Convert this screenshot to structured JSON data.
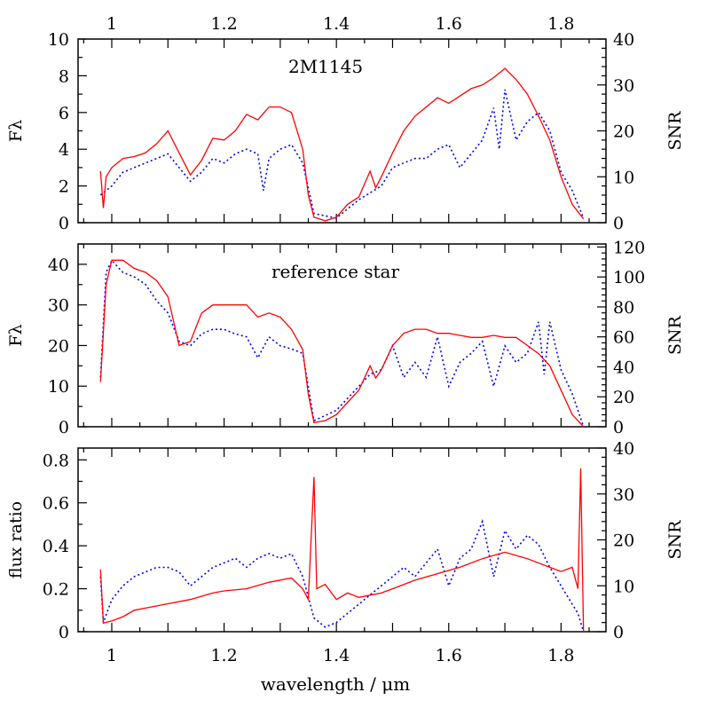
{
  "chart_data": {
    "type": "line",
    "xlabel": "wavelength / μm",
    "xlim": [
      0.94,
      1.88
    ],
    "xticks": [
      1,
      1.2,
      1.4,
      1.6,
      1.8
    ],
    "xtick_labels": [
      "1",
      "1.2",
      "1.4",
      "1.6",
      "1.8"
    ],
    "colors": {
      "flux": "#ff0000",
      "snr": "#0000ff"
    },
    "grid": false,
    "panels": [
      {
        "title": "2M1145",
        "ylabel": "Fλ",
        "ylim": [
          0,
          10
        ],
        "yticks": [
          0,
          2,
          4,
          6,
          8,
          10
        ],
        "ylabel_right": "SNR",
        "ylim_right": [
          0,
          40
        ],
        "yticks_right": [
          0,
          10,
          20,
          30,
          40
        ],
        "flux": {
          "x": [
            0.98,
            0.985,
            0.99,
            1.0,
            1.02,
            1.04,
            1.06,
            1.08,
            1.1,
            1.12,
            1.14,
            1.16,
            1.18,
            1.2,
            1.22,
            1.24,
            1.26,
            1.28,
            1.3,
            1.32,
            1.34,
            1.35,
            1.36,
            1.38,
            1.4,
            1.42,
            1.44,
            1.46,
            1.47,
            1.48,
            1.5,
            1.52,
            1.54,
            1.56,
            1.58,
            1.6,
            1.62,
            1.64,
            1.66,
            1.68,
            1.7,
            1.72,
            1.74,
            1.76,
            1.78,
            1.8,
            1.82,
            1.84
          ],
          "y": [
            2.8,
            0.8,
            2.5,
            3.0,
            3.5,
            3.6,
            3.8,
            4.3,
            5.0,
            3.8,
            2.6,
            3.4,
            4.6,
            4.5,
            5.0,
            5.9,
            5.6,
            6.3,
            6.3,
            6.0,
            4.0,
            1.5,
            0.3,
            0.1,
            0.3,
            1.0,
            1.4,
            2.8,
            1.9,
            2.5,
            3.8,
            5.0,
            5.8,
            6.3,
            6.8,
            6.5,
            6.9,
            7.3,
            7.5,
            7.9,
            8.4,
            7.8,
            7.0,
            5.8,
            4.5,
            2.5,
            1.0,
            0.2
          ]
        },
        "snr": {
          "x": [
            0.98,
            1.0,
            1.02,
            1.04,
            1.06,
            1.08,
            1.1,
            1.12,
            1.14,
            1.16,
            1.18,
            1.2,
            1.22,
            1.24,
            1.26,
            1.27,
            1.28,
            1.3,
            1.32,
            1.34,
            1.36,
            1.4,
            1.44,
            1.48,
            1.5,
            1.52,
            1.54,
            1.56,
            1.58,
            1.6,
            1.62,
            1.64,
            1.66,
            1.68,
            1.69,
            1.7,
            1.72,
            1.74,
            1.76,
            1.78,
            1.8,
            1.82,
            1.84
          ],
          "y": [
            6,
            8,
            11,
            12,
            13,
            14,
            15,
            12,
            9,
            11,
            14,
            13,
            15,
            16,
            15,
            7,
            14,
            16,
            17,
            13,
            2,
            1,
            5,
            8,
            12,
            13,
            14,
            14,
            16,
            17,
            12,
            15,
            18,
            25,
            16,
            29,
            18,
            22,
            24,
            20,
            11,
            7,
            1
          ]
        }
      },
      {
        "title": "reference star",
        "ylabel": "Fλ",
        "ylim": [
          0,
          45
        ],
        "yticks": [
          0,
          10,
          20,
          30,
          40
        ],
        "ylabel_right": "SNR",
        "ylim_right": [
          0,
          122
        ],
        "yticks_right": [
          0,
          20,
          40,
          60,
          80,
          100,
          120
        ],
        "flux": {
          "x": [
            0.98,
            0.99,
            1.0,
            1.02,
            1.04,
            1.06,
            1.08,
            1.1,
            1.12,
            1.14,
            1.16,
            1.18,
            1.2,
            1.22,
            1.24,
            1.26,
            1.28,
            1.3,
            1.32,
            1.34,
            1.35,
            1.36,
            1.38,
            1.4,
            1.42,
            1.44,
            1.46,
            1.47,
            1.48,
            1.5,
            1.52,
            1.54,
            1.56,
            1.58,
            1.6,
            1.62,
            1.64,
            1.66,
            1.68,
            1.7,
            1.72,
            1.74,
            1.76,
            1.78,
            1.8,
            1.82,
            1.84
          ],
          "y": [
            11,
            35,
            41,
            41,
            39,
            38,
            36,
            32,
            20,
            21,
            28,
            30,
            30,
            30,
            30,
            27,
            28,
            27,
            24,
            19,
            8,
            1,
            1.5,
            3,
            6,
            9,
            15,
            12,
            14,
            20,
            23,
            24,
            24,
            23,
            23,
            22.5,
            22,
            22,
            22.5,
            22,
            22,
            20,
            18,
            15,
            9,
            3,
            0
          ]
        },
        "snr": {
          "x": [
            0.98,
            0.99,
            1.0,
            1.02,
            1.04,
            1.06,
            1.08,
            1.1,
            1.12,
            1.14,
            1.16,
            1.18,
            1.2,
            1.22,
            1.24,
            1.26,
            1.28,
            1.3,
            1.32,
            1.34,
            1.36,
            1.4,
            1.44,
            1.46,
            1.48,
            1.5,
            1.52,
            1.54,
            1.56,
            1.58,
            1.6,
            1.62,
            1.64,
            1.66,
            1.68,
            1.7,
            1.72,
            1.74,
            1.76,
            1.77,
            1.78,
            1.8,
            1.82,
            1.84
          ],
          "y": [
            33,
            103,
            111,
            103,
            100,
            95,
            84,
            76,
            57,
            54,
            62,
            65,
            65,
            62,
            60,
            46,
            60,
            54,
            52,
            49,
            4,
            11,
            27,
            35,
            38,
            54,
            33,
            43,
            33,
            60,
            27,
            43,
            49,
            57,
            27,
            54,
            43,
            49,
            70,
            35,
            70,
            38,
            22,
            0
          ]
        }
      },
      {
        "title": "",
        "ylabel": "flux ratio",
        "ylim": [
          0,
          0.855
        ],
        "yticks": [
          0,
          0.2,
          0.4,
          0.6,
          0.8
        ],
        "ylabel_right": "SNR",
        "ylim_right": [
          0,
          40
        ],
        "yticks_right": [
          0,
          10,
          20,
          30,
          40
        ],
        "flux": {
          "x": [
            0.98,
            0.985,
            1.0,
            1.02,
            1.04,
            1.06,
            1.1,
            1.14,
            1.18,
            1.2,
            1.24,
            1.28,
            1.32,
            1.34,
            1.35,
            1.36,
            1.365,
            1.38,
            1.4,
            1.42,
            1.44,
            1.46,
            1.48,
            1.5,
            1.54,
            1.58,
            1.62,
            1.66,
            1.7,
            1.74,
            1.78,
            1.8,
            1.82,
            1.83,
            1.835,
            1.84
          ],
          "y": [
            0.29,
            0.04,
            0.05,
            0.07,
            0.1,
            0.11,
            0.13,
            0.15,
            0.18,
            0.19,
            0.2,
            0.23,
            0.25,
            0.2,
            0.15,
            0.72,
            0.2,
            0.22,
            0.15,
            0.18,
            0.16,
            0.17,
            0.18,
            0.2,
            0.24,
            0.27,
            0.3,
            0.34,
            0.37,
            0.34,
            0.3,
            0.28,
            0.3,
            0.2,
            0.76,
            0
          ]
        },
        "snr": {
          "x": [
            0.98,
            0.985,
            1.0,
            1.02,
            1.04,
            1.06,
            1.08,
            1.1,
            1.12,
            1.14,
            1.16,
            1.18,
            1.2,
            1.22,
            1.24,
            1.26,
            1.28,
            1.3,
            1.32,
            1.34,
            1.36,
            1.38,
            1.4,
            1.42,
            1.44,
            1.46,
            1.48,
            1.5,
            1.52,
            1.54,
            1.56,
            1.58,
            1.6,
            1.62,
            1.64,
            1.66,
            1.68,
            1.7,
            1.72,
            1.74,
            1.76,
            1.78,
            1.8,
            1.82,
            1.83,
            1.84
          ],
          "y": [
            12,
            2,
            7,
            10,
            12,
            13,
            14,
            14,
            13,
            10,
            12,
            14,
            15,
            16,
            14,
            16,
            17,
            16,
            17,
            12,
            3,
            1,
            2,
            4,
            6,
            8,
            10,
            12,
            14,
            12,
            15,
            18,
            10,
            16,
            18,
            24,
            12,
            22,
            18,
            21,
            19,
            14,
            10,
            6,
            4,
            0
          ]
        }
      }
    ]
  }
}
